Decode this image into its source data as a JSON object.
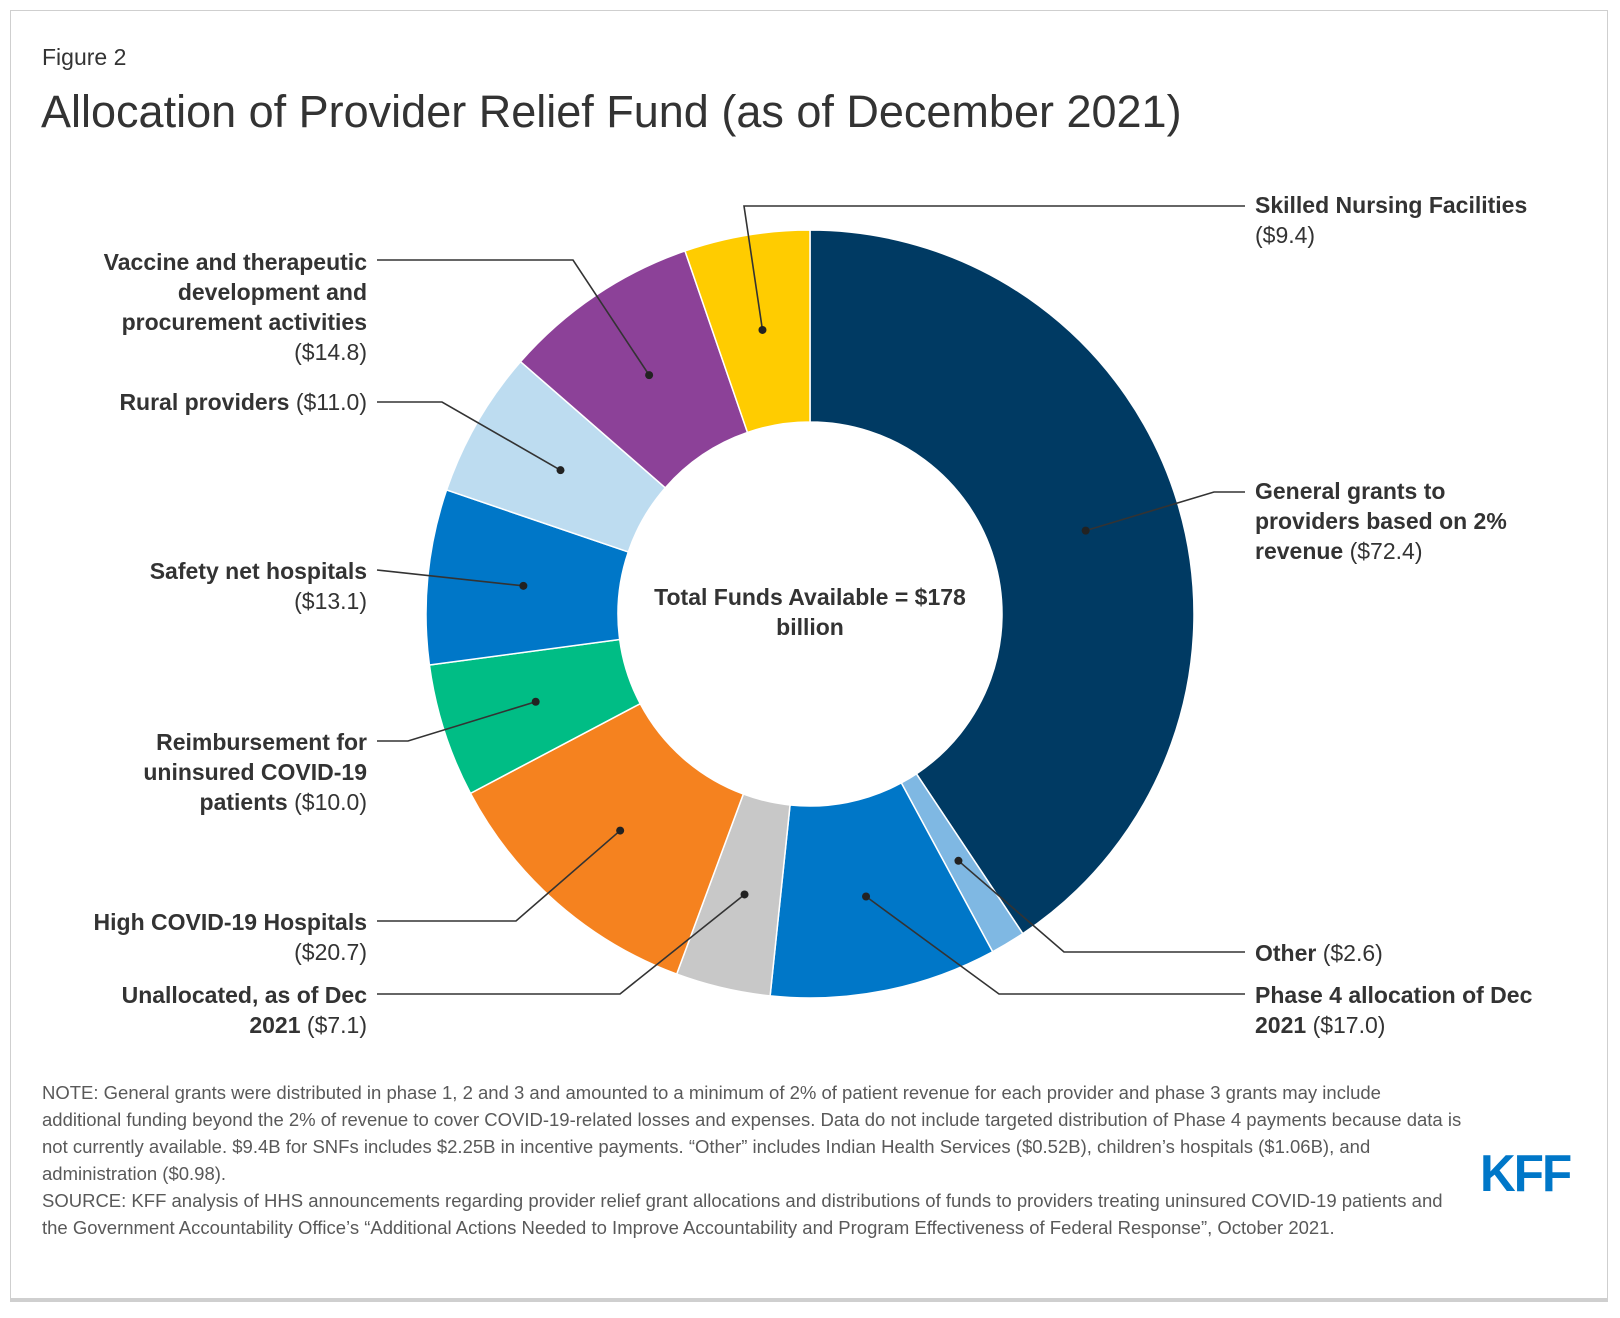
{
  "figure_label": "Figure 2",
  "chart_data": {
    "type": "pie",
    "subtype": "donut",
    "title": "Allocation of Provider Relief Fund (as of December 2021)",
    "center_label": "Total Funds Available = $178 billion",
    "center_lines": [
      "Total Funds Available = $178",
      "billion"
    ],
    "unit": "$ billions",
    "slices": [
      {
        "name": "General grants to providers based on 2% revenue",
        "value": 72.4,
        "value_label": "($72.4)",
        "color": "#003a63"
      },
      {
        "name": "Other",
        "value": 2.6,
        "value_label": "($2.6)",
        "color": "#7fb8e3"
      },
      {
        "name": "Phase 4 allocation of Dec 2021",
        "value": 17.0,
        "value_label": "($17.0)",
        "color": "#0077c8"
      },
      {
        "name": "Unallocated, as of Dec 2021",
        "value": 7.1,
        "value_label": "($7.1)",
        "color": "#c8c8c8"
      },
      {
        "name": "High COVID-19 Hospitals",
        "value": 20.7,
        "value_label": "($20.7)",
        "color": "#f5821f"
      },
      {
        "name": "Reimbursement for uninsured COVID-19 patients",
        "value": 10.0,
        "value_label": "($10.0)",
        "color": "#00bd85"
      },
      {
        "name": "Safety net hospitals",
        "value": 13.1,
        "value_label": "($13.1)",
        "color": "#0077c8"
      },
      {
        "name": "Rural providers",
        "value": 11.0,
        "value_label": "($11.0)",
        "color": "#bddcf0"
      },
      {
        "name": "Vaccine and therapeutic development and procurement activities",
        "value": 14.8,
        "value_label": "($14.8)",
        "color": "#8c4198"
      },
      {
        "name": "Skilled Nursing Facilities",
        "value": 9.4,
        "value_label": "($9.4)",
        "color": "#ffcc00"
      }
    ],
    "legend": "none (leader-line labels)"
  },
  "notes": {
    "note": "NOTE: General grants were distributed in phase 1, 2 and 3 and amounted to a minimum of 2% of patient revenue for each provider and phase 3 grants may include additional funding beyond the 2% of revenue to cover COVID-19-related losses and expenses. Data do not include targeted distribution of Phase 4 payments because data is not currently available. $9.4B for SNFs includes $2.25B in incentive payments. “Other” includes Indian Health Services ($0.52B), children’s hospitals ($1.06B), and administration ($0.98).",
    "source": "SOURCE: KFF analysis of HHS announcements regarding provider relief grant allocations and distributions of funds to providers treating uninsured COVID-19 patients and the Government Accountability Office’s “Additional Actions Needed to Improve Accountability and Program Effectiveness of Federal Response”, October 2021."
  },
  "logo": "KFF",
  "colors": {
    "brand": "#0077c8",
    "text": "#333333"
  }
}
